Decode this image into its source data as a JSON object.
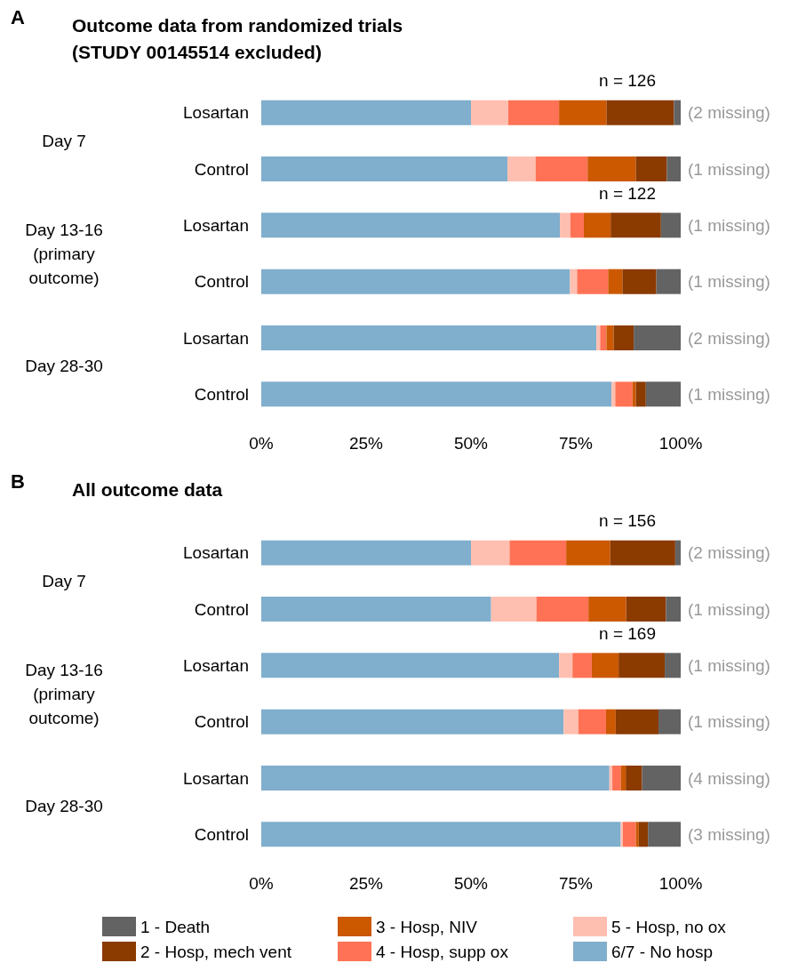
{
  "chart_data": [
    {
      "type": "bar",
      "orientation": "horizontal",
      "stacked": true,
      "title": "Outcome data from randomized trials\n(STUDY 00145514 excluded)",
      "categories": [
        "Losartan",
        "Control",
        "Losartan",
        "Control",
        "Losartan",
        "Control"
      ],
      "series": [
        {
          "color": "#80aecd",
          "values": [
            50.0,
            58.7,
            71.2,
            73.6,
            79.9,
            83.5
          ]
        },
        {
          "color": "#ffbfb0",
          "values": [
            8.9,
            6.7,
            2.5,
            1.7,
            0.9,
            0.9
          ]
        },
        {
          "color": "#ff7256",
          "values": [
            12.1,
            12.4,
            3.2,
            7.4,
            1.5,
            4.1
          ]
        },
        {
          "color": "#cc5800",
          "values": [
            11.3,
            11.5,
            6.4,
            3.4,
            1.7,
            0.8
          ]
        },
        {
          "color": "#8b3a00",
          "values": [
            16.1,
            7.4,
            12.0,
            8.1,
            4.8,
            2.4
          ]
        },
        {
          "color": "#636363",
          "values": [
            1.6,
            3.3,
            4.7,
            5.8,
            11.2,
            8.3
          ]
        }
      ],
      "xlim": [
        0,
        100
      ],
      "xticks": [
        {
          "value": 0,
          "label": "0%"
        },
        {
          "value": 25,
          "label": "25%"
        },
        {
          "value": 50,
          "label": "50%"
        },
        {
          "value": 75,
          "label": "75%"
        },
        {
          "value": 100,
          "label": "100%"
        }
      ],
      "grid": false,
      "legend": false,
      "annotations": [
        "A",
        "Day 7",
        "Day 13-16\n(primary\noutcome)",
        "Day 28-30",
        "n = 126",
        "n = 122",
        "(2 missing)",
        "(1 missing)",
        "(1 missing)",
        "(1 missing)",
        "(2 missing)",
        "(1 missing)"
      ]
    },
    {
      "type": "bar",
      "orientation": "horizontal",
      "stacked": true,
      "title": "All outcome data",
      "categories": [
        "Losartan",
        "Control",
        "Losartan",
        "Control",
        "Losartan",
        "Control"
      ],
      "series": [
        {
          "name": "6/7 - No hosp",
          "color": "#80aecd",
          "values": [
            50.0,
            54.8,
            71.0,
            72.1,
            83.0,
            85.7
          ]
        },
        {
          "name": "5 - Hosp, no ox",
          "color": "#ffbfb0",
          "values": [
            9.2,
            10.8,
            3.2,
            3.5,
            0.7,
            0.5
          ]
        },
        {
          "name": "4 - Hosp, supp ox",
          "color": "#ff7256",
          "values": [
            13.5,
            12.4,
            4.6,
            6.6,
            2.0,
            3.1
          ]
        },
        {
          "name": "3 - Hosp, NIV",
          "color": "#cc5800",
          "values": [
            10.5,
            9.0,
            6.4,
            2.3,
            1.2,
            0.7
          ]
        },
        {
          "name": "2 - Hosp, mech vent",
          "color": "#8b3a00",
          "values": [
            15.5,
            9.5,
            11.0,
            10.2,
            3.9,
            2.2
          ]
        },
        {
          "name": "1 - Death",
          "color": "#636363",
          "values": [
            1.3,
            3.5,
            3.8,
            5.3,
            9.2,
            7.8
          ]
        }
      ],
      "xlim": [
        0,
        100
      ],
      "xticks": [
        {
          "value": 0,
          "label": "0%"
        },
        {
          "value": 25,
          "label": "25%"
        },
        {
          "value": 50,
          "label": "50%"
        },
        {
          "value": 75,
          "label": "75%"
        },
        {
          "value": 100,
          "label": "100%"
        }
      ],
      "grid": false,
      "legend": "bottom",
      "annotations": [
        "B",
        "Day 7",
        "Day 13-16\n(primary\noutcome)",
        "Day 28-30",
        "n = 156",
        "n = 169",
        "(2 missing)",
        "(1 missing)",
        "(1 missing)",
        "(1 missing)",
        "(4 missing)",
        "(3 missing)"
      ]
    }
  ]
}
